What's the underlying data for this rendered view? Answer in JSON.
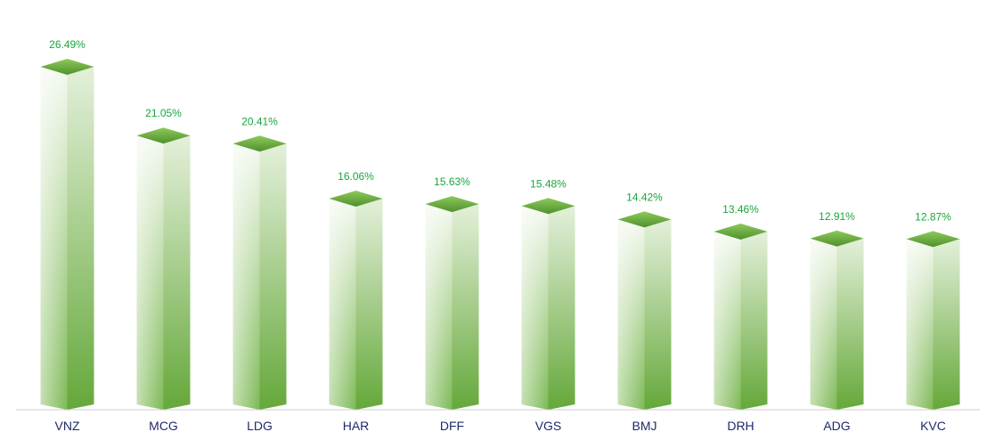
{
  "chart_data": {
    "type": "bar",
    "categories": [
      "VNZ",
      "MCG",
      "LDG",
      "HAR",
      "DFF",
      "VGS",
      "BMJ",
      "DRH",
      "ADG",
      "KVC"
    ],
    "values": [
      26.49,
      21.05,
      20.41,
      16.06,
      15.63,
      15.48,
      14.42,
      13.46,
      12.91,
      12.87
    ],
    "value_labels": [
      "26.49%",
      "21.05%",
      "20.41%",
      "16.06%",
      "15.63%",
      "15.48%",
      "14.42%",
      "13.46%",
      "12.91%",
      "12.87%"
    ],
    "title": "",
    "xlabel": "",
    "ylabel": "",
    "ylim": [
      0,
      30
    ],
    "grid": false,
    "legend": "none",
    "colors": {
      "bar_light": "#f2f8ee",
      "bar_dark": "#6aaa3c",
      "top_light": "#8cc95a",
      "top_dark": "#4e8f2a",
      "value_label": "#1aa53a",
      "category_label": "#1f2a6b",
      "axis": "#c8c8c8"
    }
  }
}
